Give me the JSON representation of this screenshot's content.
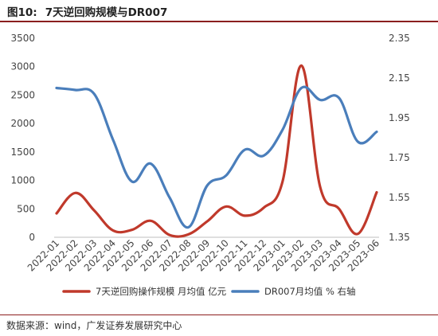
{
  "header": {
    "label": "图10:",
    "text": "7天逆回购规模与DR007"
  },
  "source": "数据来源：wind，广发证券发展研究中心",
  "chart_data": {
    "type": "line",
    "categories": [
      "2022-01",
      "2022-02",
      "2022-03",
      "2022-04",
      "2022-05",
      "2022-06",
      "2022-07",
      "2022-08",
      "2022-09",
      "2022-10",
      "2022-11",
      "2022-12",
      "2023-01",
      "2023-02",
      "2023-03",
      "2023-04",
      "2023-05",
      "2023-06"
    ],
    "y_left": {
      "ylim": [
        0,
        3500
      ],
      "ticks": [
        0,
        500,
        1000,
        1500,
        2000,
        2500,
        3000,
        3500
      ]
    },
    "y_right": {
      "ylim": [
        1.35,
        2.35
      ],
      "ticks": [
        "1.35",
        "1.55",
        "1.75",
        "1.95",
        "2.15",
        "2.35"
      ]
    },
    "grid": false,
    "legend_position": "bottom",
    "series": [
      {
        "name": "7天逆回购操作规模 月均值 亿元",
        "axis": "left",
        "color": "#c0392b",
        "values": [
          420,
          780,
          470,
          120,
          130,
          290,
          40,
          50,
          280,
          540,
          380,
          520,
          980,
          3020,
          880,
          500,
          60,
          790
        ]
      },
      {
        "name": "DR007月均值 % 右轴",
        "axis": "right",
        "color": "#4a7ebb",
        "values": [
          2.1,
          2.09,
          2.07,
          1.84,
          1.63,
          1.72,
          1.55,
          1.4,
          1.61,
          1.66,
          1.79,
          1.76,
          1.89,
          2.1,
          2.04,
          2.05,
          1.83,
          1.88
        ]
      }
    ]
  }
}
